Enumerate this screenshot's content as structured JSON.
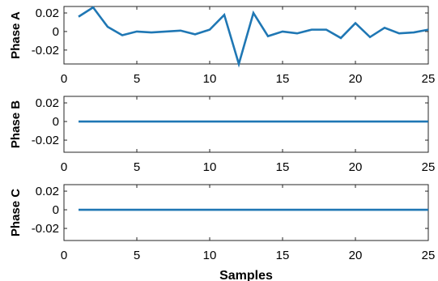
{
  "chart_data": {
    "type": "line",
    "grid": false,
    "xlabel": "Samples",
    "color": "#1f77b4",
    "subplots": [
      {
        "ylabel": "Phase A",
        "xlim": [
          0,
          25
        ],
        "ylim": [
          -0.035,
          0.027
        ],
        "xticks": [
          0,
          5,
          10,
          15,
          20,
          25
        ],
        "yticks": [
          0.02,
          0,
          -0.02
        ],
        "ytick_labels": [
          "0.02",
          "0",
          "-0.02"
        ],
        "x": [
          1,
          2,
          3,
          4,
          5,
          6,
          7,
          8,
          9,
          10,
          11,
          12,
          13,
          14,
          15,
          16,
          17,
          18,
          19,
          20,
          21,
          22,
          23,
          24,
          25
        ],
        "y": [
          0.016,
          0.026,
          0.005,
          -0.004,
          0.0,
          -0.001,
          0.0,
          0.001,
          -0.003,
          0.002,
          0.018,
          -0.035,
          0.02,
          -0.005,
          0.0,
          -0.002,
          0.002,
          0.002,
          -0.007,
          0.009,
          -0.006,
          0.004,
          -0.002,
          -0.001,
          0.002
        ]
      },
      {
        "ylabel": "Phase B",
        "xlim": [
          0,
          25
        ],
        "ylim": [
          -0.033,
          0.027
        ],
        "xticks": [
          0,
          5,
          10,
          15,
          20,
          25
        ],
        "yticks": [
          0.02,
          0,
          -0.02
        ],
        "ytick_labels": [
          "0.02",
          "0",
          "-0.02"
        ],
        "x": [
          1,
          25
        ],
        "y": [
          0,
          0
        ]
      },
      {
        "ylabel": "Phase C",
        "xlim": [
          0,
          25
        ],
        "ylim": [
          -0.033,
          0.027
        ],
        "xticks": [
          0,
          5,
          10,
          15,
          20,
          25
        ],
        "yticks": [
          0.02,
          0,
          -0.02
        ],
        "ytick_labels": [
          "0.02",
          "0",
          "-0.02"
        ],
        "x": [
          1,
          25
        ],
        "y": [
          0,
          0
        ]
      }
    ]
  }
}
